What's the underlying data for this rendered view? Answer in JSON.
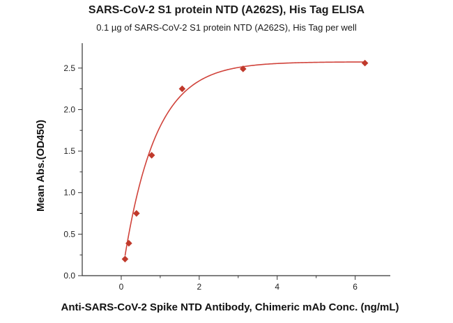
{
  "chart_data": {
    "type": "scatter",
    "title": "SARS-CoV-2 S1 protein NTD (A262S), His Tag ELISA",
    "subtitle": "0.1 µg of SARS-CoV-2 S1 protein NTD (A262S), His Tag per well",
    "xlabel": "Anti-SARS-CoV-2 Spike NTD Antibody, Chimeric mAb Conc. (ng/mL)",
    "ylabel": "Mean Abs.(OD450)",
    "xlim": [
      -1.0,
      6.9
    ],
    "ylim": [
      0,
      2.8
    ],
    "x_ticks": [
      0,
      2,
      4,
      6
    ],
    "y_ticks": [
      0.0,
      0.5,
      1.0,
      1.5,
      2.0,
      2.5
    ],
    "x_tick_labels": [
      "0",
      "2",
      "4",
      "6"
    ],
    "y_tick_labels": [
      "0.0",
      "0.5",
      "1.0",
      "1.5",
      "2.0",
      "2.5"
    ],
    "grid": false,
    "series": [
      {
        "marker": "diamond",
        "color": "#c0392b",
        "x": [
          0.098,
          0.195,
          0.391,
          0.781,
          1.563,
          3.125,
          6.25
        ],
        "y": [
          0.2,
          0.39,
          0.75,
          1.45,
          2.25,
          2.49,
          2.56
        ]
      }
    ],
    "fit_curve": {
      "type": "four-parameter logistic",
      "color": "#d0423a"
    }
  }
}
